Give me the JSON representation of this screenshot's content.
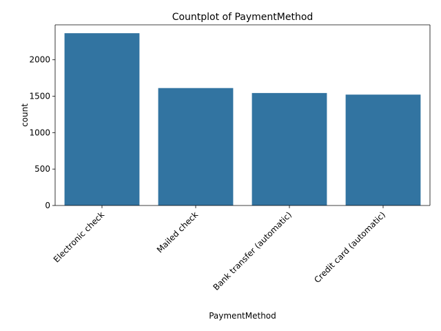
{
  "chart_data": {
    "type": "bar",
    "title": "Countplot of PaymentMethod",
    "xlabel": "PaymentMethod",
    "ylabel": "count",
    "categories": [
      "Electronic check",
      "Mailed check",
      "Bank transfer (automatic)",
      "Credit card (automatic)"
    ],
    "values": [
      2365,
      1612,
      1544,
      1522
    ],
    "ylim": [
      0,
      2480
    ],
    "yticks": [
      0,
      500,
      1000,
      1500,
      2000
    ],
    "grid": false,
    "bar_color": "#3274a1"
  }
}
